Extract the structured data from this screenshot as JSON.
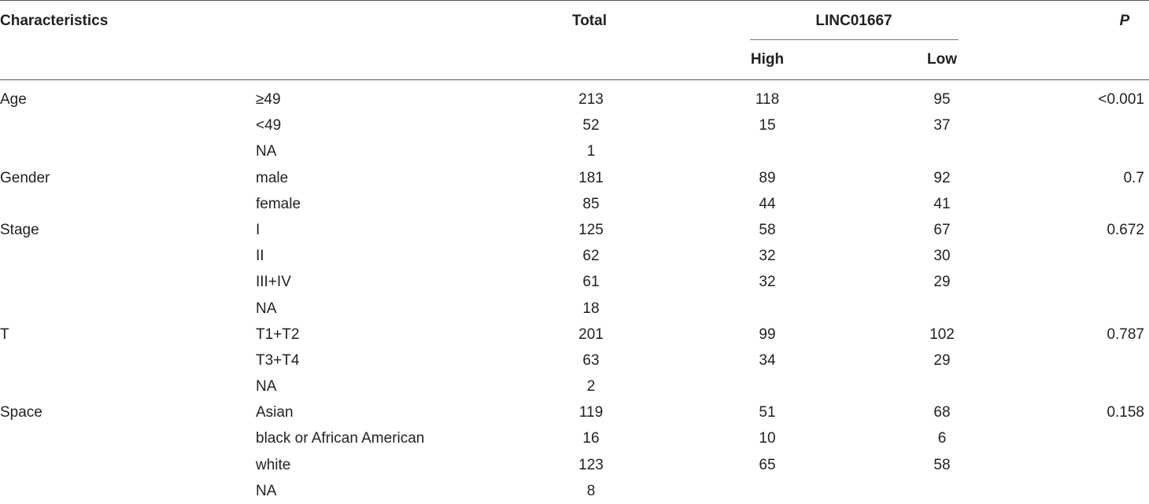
{
  "header": {
    "characteristics": "Characteristics",
    "total": "Total",
    "group": "LINC01667",
    "high": "High",
    "low": "Low",
    "p": "P"
  },
  "rows": [
    {
      "char": "Age",
      "sub": "≥49",
      "total": "213",
      "high": "118",
      "low": "95",
      "p": "<0.001"
    },
    {
      "char": "",
      "sub": "<49",
      "total": "52",
      "high": "15",
      "low": "37",
      "p": ""
    },
    {
      "char": "",
      "sub": "NA",
      "total": "1",
      "high": "",
      "low": "",
      "p": ""
    },
    {
      "char": "Gender",
      "sub": "male",
      "total": "181",
      "high": "89",
      "low": "92",
      "p": "0.7"
    },
    {
      "char": "",
      "sub": "female",
      "total": "85",
      "high": "44",
      "low": "41",
      "p": ""
    },
    {
      "char": "Stage",
      "sub": "I",
      "total": "125",
      "high": "58",
      "low": "67",
      "p": "0.672"
    },
    {
      "char": "",
      "sub": "II",
      "total": "62",
      "high": "32",
      "low": "30",
      "p": ""
    },
    {
      "char": "",
      "sub": "III+IV",
      "total": "61",
      "high": "32",
      "low": "29",
      "p": ""
    },
    {
      "char": "",
      "sub": "NA",
      "total": "18",
      "high": "",
      "low": "",
      "p": ""
    },
    {
      "char": "T",
      "sub": "T1+T2",
      "total": "201",
      "high": "99",
      "low": "102",
      "p": "0.787"
    },
    {
      "char": "",
      "sub": "T3+T4",
      "total": "63",
      "high": "34",
      "low": "29",
      "p": ""
    },
    {
      "char": "",
      "sub": "NA",
      "total": "2",
      "high": "",
      "low": "",
      "p": ""
    },
    {
      "char": "Space",
      "sub": "Asian",
      "total": "119",
      "high": "51",
      "low": "68",
      "p": "0.158"
    },
    {
      "char": "",
      "sub": "black or African American",
      "total": "16",
      "high": "10",
      "low": "6",
      "p": ""
    },
    {
      "char": "",
      "sub": "white",
      "total": "123",
      "high": "65",
      "low": "58",
      "p": ""
    },
    {
      "char": "",
      "sub": "NA",
      "total": "8",
      "high": "",
      "low": "",
      "p": ""
    }
  ]
}
